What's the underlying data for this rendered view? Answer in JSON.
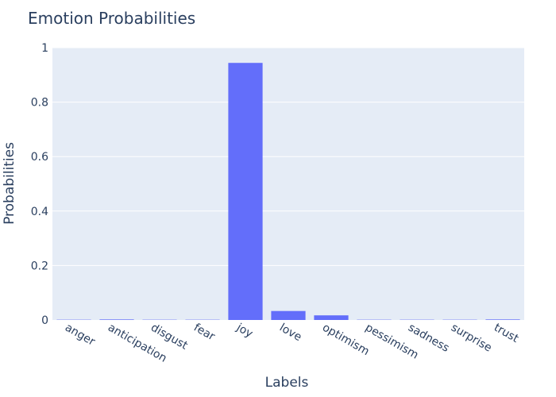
{
  "chart_data": {
    "type": "bar",
    "title": "Emotion Probabilities",
    "xlabel": "Labels",
    "ylabel": "Probabilities",
    "categories": [
      "anger",
      "anticipation",
      "disgust",
      "fear",
      "joy",
      "love",
      "optimism",
      "pessimism",
      "sadness",
      "surprise",
      "trust"
    ],
    "values": [
      0.001,
      0.002,
      0.001,
      0.001,
      0.944,
      0.033,
      0.017,
      0.001,
      0.001,
      0.001,
      0.002
    ],
    "ylim": [
      0,
      1
    ],
    "yticks": [
      0,
      0.2,
      0.4,
      0.6,
      0.8,
      1
    ],
    "ytick_labels": [
      "0",
      "0.2",
      "0.4",
      "0.6",
      "0.8",
      "1"
    ],
    "grid": true,
    "colors": {
      "bar": "#636efa",
      "plot_background": "#e5ecf6",
      "gridline": "#ffffff",
      "text": "#2a3f5f"
    }
  }
}
